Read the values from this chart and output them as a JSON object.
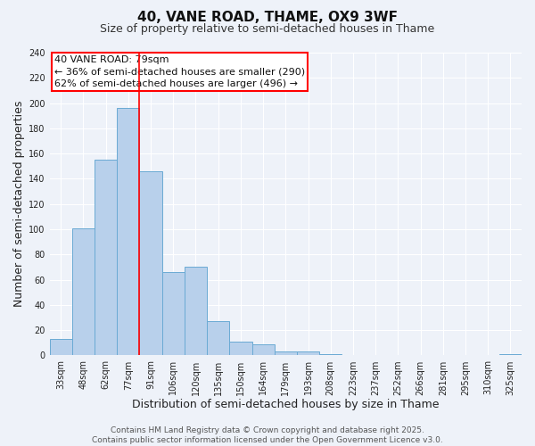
{
  "title": "40, VANE ROAD, THAME, OX9 3WF",
  "subtitle": "Size of property relative to semi-detached houses in Thame",
  "xlabel": "Distribution of semi-detached houses by size in Thame",
  "ylabel": "Number of semi-detached properties",
  "categories": [
    "33sqm",
    "48sqm",
    "62sqm",
    "77sqm",
    "91sqm",
    "106sqm",
    "120sqm",
    "135sqm",
    "150sqm",
    "164sqm",
    "179sqm",
    "193sqm",
    "208sqm",
    "223sqm",
    "237sqm",
    "252sqm",
    "266sqm",
    "281sqm",
    "295sqm",
    "310sqm",
    "325sqm"
  ],
  "values": [
    13,
    101,
    155,
    196,
    146,
    66,
    70,
    27,
    11,
    9,
    3,
    3,
    1,
    0,
    0,
    0,
    0,
    0,
    0,
    0,
    1
  ],
  "bar_color": "#b8d0eb",
  "bar_edge_color": "#6aaad4",
  "background_color": "#eef2f9",
  "grid_color": "#ffffff",
  "vline_x": 3.5,
  "vline_color": "red",
  "ylim": [
    0,
    240
  ],
  "yticks": [
    0,
    20,
    40,
    60,
    80,
    100,
    120,
    140,
    160,
    180,
    200,
    220,
    240
  ],
  "annotation_title": "40 VANE ROAD: 79sqm",
  "annotation_line1": "← 36% of semi-detached houses are smaller (290)",
  "annotation_line2": "62% of semi-detached houses are larger (496) →",
  "annotation_box_color": "#ffffff",
  "annotation_box_edge": "red",
  "footer_line1": "Contains HM Land Registry data © Crown copyright and database right 2025.",
  "footer_line2": "Contains public sector information licensed under the Open Government Licence v3.0.",
  "title_fontsize": 11,
  "subtitle_fontsize": 9,
  "axis_label_fontsize": 9,
  "tick_fontsize": 7,
  "annotation_fontsize": 8,
  "footer_fontsize": 6.5
}
